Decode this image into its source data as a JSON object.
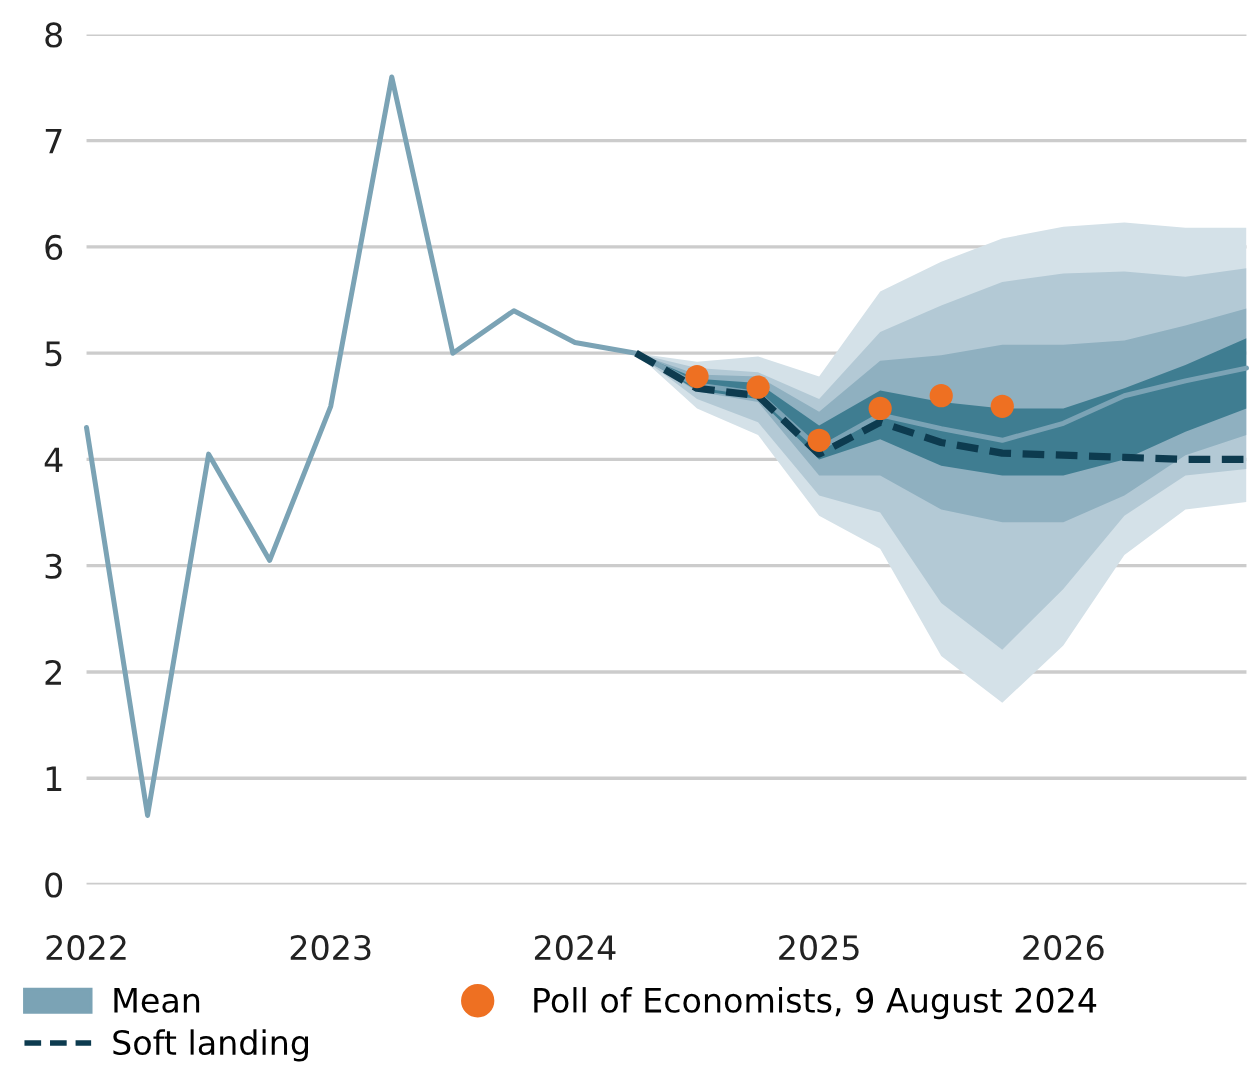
{
  "chart_data": {
    "type": "line",
    "xlim": [
      2022,
      2026.75
    ],
    "ylim": [
      0,
      8
    ],
    "xticks": [
      {
        "value": 2022,
        "label": "2022"
      },
      {
        "value": 2023,
        "label": "2023"
      },
      {
        "value": 2024,
        "label": "2024"
      },
      {
        "value": 2025,
        "label": "2025"
      },
      {
        "value": 2026,
        "label": "2026"
      }
    ],
    "yticks": [
      0,
      1,
      2,
      3,
      4,
      5,
      6,
      7,
      8
    ],
    "grid": "y",
    "legend": "bottom",
    "series": [
      {
        "type": "area",
        "color": "#d4e1e8",
        "x": [
          2024.25,
          2024.5,
          2024.75,
          2025,
          2025.25,
          2025.5,
          2025.75,
          2026,
          2026.25,
          2026.5,
          2026.75
        ],
        "values": [
          null,
          null,
          null,
          null,
          null,
          null,
          null,
          null,
          null,
          null,
          null
        ],
        "lower": [
          5.0,
          4.48,
          4.23,
          3.47,
          3.16,
          2.15,
          1.71,
          2.25,
          3.1,
          3.53,
          3.6
        ],
        "upper": [
          5.0,
          4.92,
          4.97,
          4.78,
          5.58,
          5.86,
          6.08,
          6.19,
          6.23,
          6.18,
          6.18
        ]
      },
      {
        "type": "area",
        "color": "#b3c9d5",
        "x": [
          2024.25,
          2024.5,
          2024.75,
          2025,
          2025.25,
          2025.5,
          2025.75,
          2026,
          2026.25,
          2026.5,
          2026.75
        ],
        "values": [
          null,
          null,
          null,
          null,
          null,
          null,
          null,
          null,
          null,
          null,
          null
        ],
        "lower": [
          5.0,
          4.57,
          4.35,
          3.66,
          3.5,
          2.65,
          2.21,
          2.78,
          3.47,
          3.85,
          3.91
        ],
        "upper": [
          5.0,
          4.86,
          4.82,
          4.57,
          5.2,
          5.45,
          5.67,
          5.75,
          5.77,
          5.72,
          5.8
        ]
      },
      {
        "type": "area",
        "color": "#8fb0c0",
        "x": [
          2024.25,
          2024.5,
          2024.75,
          2025,
          2025.25,
          2025.5,
          2025.75,
          2026,
          2026.25,
          2026.5,
          2026.75
        ],
        "values": [
          null,
          null,
          null,
          null,
          null,
          null,
          null,
          null,
          null,
          null,
          null
        ],
        "lower": [
          5.0,
          4.64,
          4.54,
          3.85,
          3.85,
          3.53,
          3.41,
          3.41,
          3.66,
          4.04,
          4.23
        ],
        "upper": [
          5.0,
          4.8,
          4.78,
          4.45,
          4.93,
          4.98,
          5.08,
          5.08,
          5.12,
          5.26,
          5.42
        ]
      },
      {
        "type": "area",
        "color": "#3f7d91",
        "x": [
          2024.25,
          2024.5,
          2024.75,
          2025,
          2025.25,
          2025.5,
          2025.75,
          2026,
          2026.25,
          2026.5,
          2026.75
        ],
        "values": [
          null,
          null,
          null,
          null,
          null,
          null,
          null,
          null,
          null,
          null,
          null
        ],
        "lower": [
          5.0,
          4.65,
          4.57,
          4.0,
          4.19,
          3.94,
          3.85,
          3.85,
          4.0,
          4.26,
          4.48
        ],
        "upper": [
          5.0,
          4.76,
          4.72,
          4.32,
          4.65,
          4.54,
          4.48,
          4.48,
          4.67,
          4.89,
          5.14
        ]
      },
      {
        "name": "Mean",
        "color": "#7ba3b5",
        "x": [
          2022,
          2022.25,
          2022.5,
          2022.75,
          2023,
          2023.25,
          2023.5,
          2023.75,
          2024,
          2024.25,
          2024.5,
          2024.75,
          2025,
          2025.25,
          2025.5,
          2025.75,
          2026,
          2026.25,
          2026.5,
          2026.75
        ],
        "values": [
          4.3,
          0.65,
          4.05,
          3.05,
          4.5,
          7.6,
          5.0,
          5.4,
          5.1,
          5.0,
          4.7,
          4.62,
          4.1,
          4.42,
          4.29,
          4.18,
          4.34,
          4.6,
          4.74,
          4.86
        ]
      },
      {
        "name": "Soft landing",
        "color": "#0d3b4f",
        "line_style": "dashed",
        "x": [
          2024.25,
          2024.5,
          2024.75,
          2025,
          2025.25,
          2025.5,
          2025.75,
          2026,
          2026.25,
          2026.5,
          2026.75
        ],
        "values": [
          5.0,
          4.67,
          4.6,
          4.05,
          4.35,
          4.16,
          4.06,
          4.04,
          4.02,
          4.0,
          4.0
        ]
      },
      {
        "name": "Poll of Economists, 9 August 2024",
        "type": "scatter",
        "color": "#ee7022",
        "marker": "circle",
        "x": [
          2024.5,
          2024.75,
          2025,
          2025.25,
          2025.5,
          2025.75
        ],
        "values": [
          4.78,
          4.68,
          4.18,
          4.48,
          4.6,
          4.5
        ]
      }
    ]
  }
}
